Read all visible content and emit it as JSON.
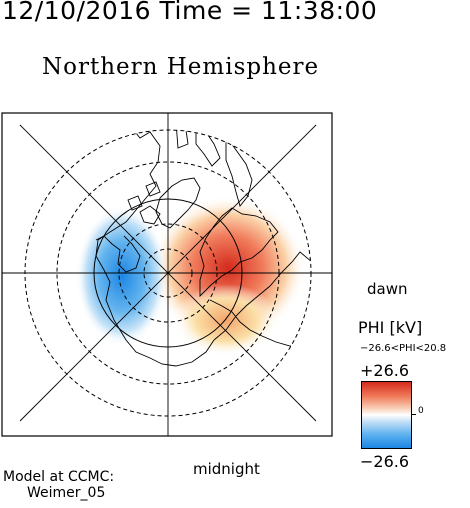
{
  "header": {
    "timestamp": "12/10/2016 Time = 11:38:00",
    "title": "Northern Hemisphere"
  },
  "map": {
    "orientation_labels": {
      "right": "dawn",
      "bottom": "midnight"
    },
    "colors": {
      "positive": "#d42a1c",
      "negative": "#1c86e4",
      "background": "#ffffff",
      "coast": "#000000"
    }
  },
  "colorbar": {
    "title": "PHI [kV]",
    "range_label": "−26.6<PHI<20.8",
    "max_label": "+26.6",
    "mid_label": "0",
    "min_label": "−26.6"
  },
  "footer": {
    "model_line1": "Model at CCMC:",
    "model_line2": "Weimer_05"
  }
}
